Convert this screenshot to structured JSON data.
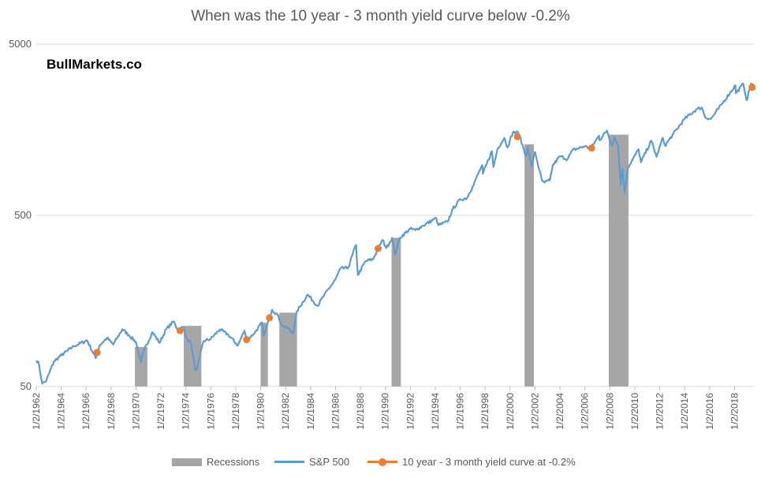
{
  "chart_data": {
    "type": "line",
    "title": "When was the 10 year - 3 month yield curve below -0.2%",
    "watermark": "BullMarkets.co",
    "y_scale": "log",
    "ylim": [
      50,
      5000
    ],
    "y_ticks": [
      {
        "value": 50,
        "label": "50"
      },
      {
        "value": 500,
        "label": "500"
      },
      {
        "value": 5000,
        "label": "5000"
      }
    ],
    "xlim": [
      "1962-01-02",
      "2019-06-30"
    ],
    "x_ticks": [
      "1/2/1962",
      "1/2/1964",
      "1/2/1966",
      "1/2/1968",
      "1/2/1970",
      "1/2/1972",
      "1/2/1974",
      "1/2/1976",
      "1/2/1978",
      "1/2/1980",
      "1/2/1982",
      "1/2/1984",
      "1/2/1986",
      "1/2/1988",
      "1/2/1990",
      "1/2/1992",
      "1/2/1994",
      "1/2/1996",
      "1/2/1998",
      "1/2/2000",
      "1/2/2002",
      "1/2/2004",
      "1/2/2006",
      "1/2/2008",
      "1/2/2010",
      "1/2/2012",
      "1/2/2014",
      "1/2/2016",
      "1/2/2018"
    ],
    "grid": "horizontal",
    "legend_position": "bottom",
    "legend": [
      {
        "key": "recessions",
        "label": "Recessions",
        "color": "#a6a6a6"
      },
      {
        "key": "sp500",
        "label": "S&P 500",
        "color": "#5b9bd5"
      },
      {
        "key": "inversion",
        "label": "10 year - 3 month yield curve at -0.2%",
        "color": "#ed7d31"
      }
    ],
    "recessions": [
      {
        "start": "1969-12-01",
        "end": "1970-11-30",
        "value": 85
      },
      {
        "start": "1973-11-01",
        "end": "1975-03-31",
        "value": 113
      },
      {
        "start": "1980-01-01",
        "end": "1980-07-31",
        "value": 118
      },
      {
        "start": "1981-07-01",
        "end": "1982-11-30",
        "value": 135
      },
      {
        "start": "1990-07-01",
        "end": "1991-03-31",
        "value": 370
      },
      {
        "start": "2001-03-01",
        "end": "2001-11-30",
        "value": 1300
      },
      {
        "start": "2007-12-01",
        "end": "2009-06-30",
        "value": 1480
      }
    ],
    "sp500": [
      [
        "1962-01-02",
        71
      ],
      [
        "1962-03-01",
        70
      ],
      [
        "1962-06-26",
        52
      ],
      [
        "1962-10-22",
        54
      ],
      [
        "1963-06-01",
        70
      ],
      [
        "1964-01-01",
        76
      ],
      [
        "1965-01-01",
        86
      ],
      [
        "1966-02-01",
        93
      ],
      [
        "1966-10-07",
        73.2
      ],
      [
        "1967-02-01",
        87
      ],
      [
        "1967-09-01",
        96
      ],
      [
        "1968-03-05",
        88
      ],
      [
        "1968-11-29",
        108
      ],
      [
        "1969-06-01",
        100
      ],
      [
        "1970-01-01",
        91
      ],
      [
        "1970-05-26",
        69.3
      ],
      [
        "1970-09-01",
        82
      ],
      [
        "1971-04-28",
        104
      ],
      [
        "1971-11-23",
        90
      ],
      [
        "1972-06-01",
        108
      ],
      [
        "1973-01-11",
        120
      ],
      [
        "1973-05-01",
        108
      ],
      [
        "1973-10-26",
        111
      ],
      [
        "1974-01-01",
        97
      ],
      [
        "1974-06-01",
        90
      ],
      [
        "1974-10-03",
        62.3
      ],
      [
        "1974-12-06",
        65
      ],
      [
        "1975-06-01",
        92
      ],
      [
        "1976-01-01",
        95
      ],
      [
        "1976-09-21",
        107.8
      ],
      [
        "1977-06-01",
        100
      ],
      [
        "1978-03-06",
        86.9
      ],
      [
        "1978-09-12",
        106
      ],
      [
        "1978-11-14",
        93
      ],
      [
        "1979-06-01",
        101
      ],
      [
        "1980-02-13",
        118
      ],
      [
        "1980-03-27",
        98.2
      ],
      [
        "1980-11-28",
        140.5
      ],
      [
        "1981-05-01",
        132
      ],
      [
        "1981-09-25",
        112.8
      ],
      [
        "1982-03-01",
        110
      ],
      [
        "1982-08-12",
        102.4
      ],
      [
        "1982-11-30",
        138
      ],
      [
        "1983-10-10",
        172
      ],
      [
        "1984-07-24",
        147.8
      ],
      [
        "1985-01-01",
        167
      ],
      [
        "1985-12-31",
        211
      ],
      [
        "1986-06-01",
        245
      ],
      [
        "1987-01-02",
        246
      ],
      [
        "1987-08-25",
        336
      ],
      [
        "1987-10-19",
        224
      ],
      [
        "1988-06-01",
        270
      ],
      [
        "1989-01-02",
        277
      ],
      [
        "1989-10-09",
        359
      ],
      [
        "1990-01-30",
        322
      ],
      [
        "1990-07-16",
        369
      ],
      [
        "1990-10-11",
        295
      ],
      [
        "1991-03-01",
        370
      ],
      [
        "1991-12-31",
        417
      ],
      [
        "1992-06-01",
        410
      ],
      [
        "1993-01-04",
        435
      ],
      [
        "1994-02-02",
        482
      ],
      [
        "1994-04-04",
        438
      ],
      [
        "1994-12-30",
        459
      ],
      [
        "1995-06-01",
        545
      ],
      [
        "1996-01-02",
        620
      ],
      [
        "1996-07-15",
        630
      ],
      [
        "1997-01-02",
        740
      ],
      [
        "1997-10-07",
        983
      ],
      [
        "1997-10-27",
        876
      ],
      [
        "1998-07-17",
        1186
      ],
      [
        "1998-08-31",
        957
      ],
      [
        "1999-01-04",
        1229
      ],
      [
        "1999-07-16",
        1418
      ],
      [
        "1999-10-15",
        1247
      ],
      [
        "2000-03-24",
        1527
      ],
      [
        "2000-09-01",
        1520
      ],
      [
        "2001-01-02",
        1283
      ],
      [
        "2001-04-04",
        1103
      ],
      [
        "2001-06-01",
        1260
      ],
      [
        "2001-09-21",
        965
      ],
      [
        "2002-01-03",
        1172
      ],
      [
        "2002-07-23",
        797
      ],
      [
        "2002-10-09",
        777
      ],
      [
        "2003-03-11",
        800
      ],
      [
        "2003-06-01",
        975
      ],
      [
        "2004-01-02",
        1108
      ],
      [
        "2004-08-12",
        1064
      ],
      [
        "2005-01-03",
        1202
      ],
      [
        "2006-01-03",
        1268
      ],
      [
        "2006-06-13",
        1223
      ],
      [
        "2007-02-20",
        1459
      ],
      [
        "2007-03-05",
        1374
      ],
      [
        "2007-10-09",
        1565
      ],
      [
        "2008-03-10",
        1273
      ],
      [
        "2008-05-19",
        1426
      ],
      [
        "2008-09-01",
        1277
      ],
      [
        "2008-11-20",
        752
      ],
      [
        "2009-01-06",
        935
      ],
      [
        "2009-03-09",
        677
      ],
      [
        "2009-06-12",
        946
      ],
      [
        "2010-04-23",
        1217
      ],
      [
        "2010-07-02",
        1022
      ],
      [
        "2011-04-29",
        1363
      ],
      [
        "2011-10-03",
        1099
      ],
      [
        "2012-04-02",
        1419
      ],
      [
        "2012-06-04",
        1278
      ],
      [
        "2013-01-02",
        1462
      ],
      [
        "2014-01-02",
        1832
      ],
      [
        "2014-12-29",
        2090
      ],
      [
        "2015-05-21",
        2131
      ],
      [
        "2015-08-25",
        1868
      ],
      [
        "2016-02-11",
        1829
      ],
      [
        "2016-12-30",
        2239
      ],
      [
        "2018-01-26",
        2873
      ],
      [
        "2018-02-08",
        2581
      ],
      [
        "2018-09-20",
        2930
      ],
      [
        "2018-12-24",
        2351
      ],
      [
        "2019-04-30",
        2946
      ],
      [
        "2019-06-03",
        2744
      ],
      [
        "2019-06-28",
        2942
      ]
    ],
    "inversion_points": [
      [
        "1966-11-15",
        79
      ],
      [
        "1973-07-15",
        106
      ],
      [
        "1978-11-15",
        94
      ],
      [
        "1980-09-15",
        126
      ],
      [
        "1989-06-01",
        320
      ],
      [
        "2000-08-01",
        1440
      ],
      [
        "2006-07-15",
        1235
      ],
      [
        "2019-05-30",
        2800
      ]
    ]
  }
}
